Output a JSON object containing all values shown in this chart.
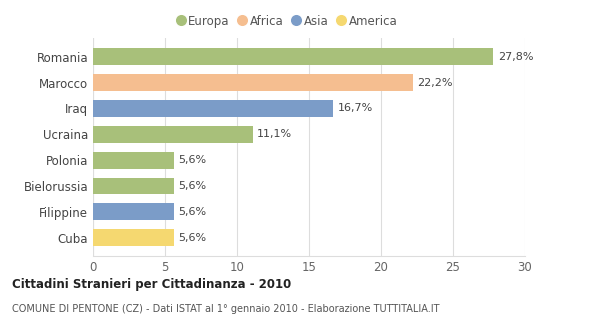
{
  "categories": [
    "Romania",
    "Marocco",
    "Iraq",
    "Ucraina",
    "Polonia",
    "Bielorussia",
    "Filippine",
    "Cuba"
  ],
  "values": [
    27.8,
    22.2,
    16.7,
    11.1,
    5.6,
    5.6,
    5.6,
    5.6
  ],
  "labels": [
    "27,8%",
    "22,2%",
    "16,7%",
    "11,1%",
    "5,6%",
    "5,6%",
    "5,6%",
    "5,6%"
  ],
  "colors": [
    "#a8c07a",
    "#f5be90",
    "#7b9cc8",
    "#a8c07a",
    "#a8c07a",
    "#a8c07a",
    "#7b9cc8",
    "#f5d870"
  ],
  "legend_labels": [
    "Europa",
    "Africa",
    "Asia",
    "America"
  ],
  "legend_colors": [
    "#a8c07a",
    "#f5be90",
    "#7b9cc8",
    "#f5d870"
  ],
  "title": "Cittadini Stranieri per Cittadinanza - 2010",
  "subtitle": "COMUNE DI PENTONE (CZ) - Dati ISTAT al 1° gennaio 2010 - Elaborazione TUTTITALIA.IT",
  "xlim": [
    0,
    30
  ],
  "xticks": [
    0,
    5,
    10,
    15,
    20,
    25,
    30
  ],
  "bg_color": "#ffffff",
  "grid_color": "#dddddd",
  "bar_height": 0.65
}
